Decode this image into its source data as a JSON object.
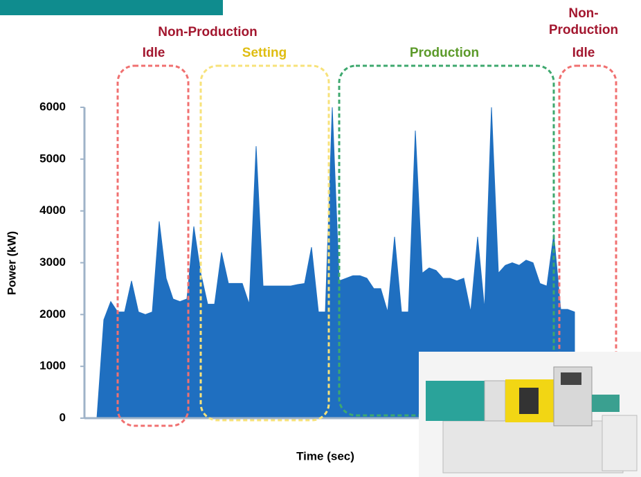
{
  "chart_data": {
    "type": "area",
    "y_label": "Power (kW)",
    "x_label": "Time (sec)",
    "color": "#1f6fc0",
    "values": [
      0,
      1900,
      2250,
      2050,
      2050,
      2650,
      2050,
      2000,
      2050,
      3800,
      2700,
      2300,
      2250,
      2300,
      3700,
      2800,
      2200,
      2200,
      3200,
      2600,
      2600,
      2600,
      2200,
      5250,
      2550,
      2550,
      2550,
      2550,
      2550,
      2580,
      2600,
      3300,
      2050,
      2050,
      6000,
      2650,
      2700,
      2750,
      2750,
      2700,
      2500,
      2500,
      2050,
      3500,
      2050,
      2050,
      5550,
      2800,
      2900,
      2850,
      2700,
      2700,
      2650,
      2700,
      2050,
      3500,
      2100,
      6000,
      2800,
      2950,
      3000,
      2950,
      3050,
      3000,
      2600,
      2550,
      3550,
      2100,
      2100,
      2050
    ],
    "ylim": [
      0,
      6000
    ],
    "yticks": [
      0,
      1000,
      2000,
      3000,
      4000,
      5000,
      6000
    ],
    "regions": [
      {
        "label": [
          "Non-Production",
          "Idle"
        ],
        "color": "#a3172f",
        "box_color": "#f07070"
      },
      {
        "label": [
          "Setting"
        ],
        "color": "#dfbd12",
        "box_color": "#f7e27a"
      },
      {
        "label": [
          "Production"
        ],
        "color": "#5c9a2a",
        "box_color": "#3ea86e"
      },
      {
        "label": [
          "Non-",
          "Production",
          "Idle"
        ],
        "color": "#a3172f",
        "box_color": "#f07070"
      }
    ]
  }
}
